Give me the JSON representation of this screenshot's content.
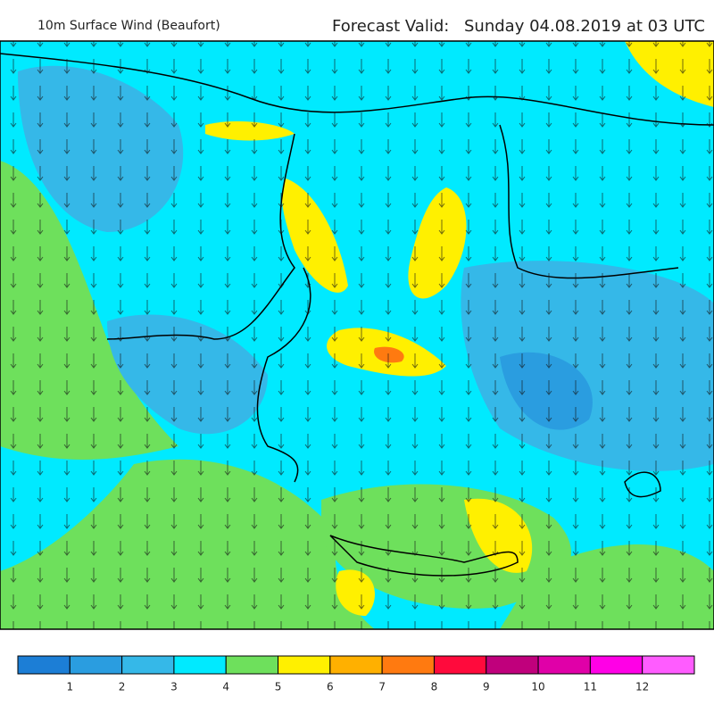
{
  "header": {
    "title": "10m Surface Wind (Beaufort)",
    "forecast_label": "Forecast Valid:",
    "forecast_time": "Sunday 04.08.2019 at 03 UTC"
  },
  "legend": {
    "colors": [
      "#1c7ed6",
      "#2a9de0",
      "#35b8e8",
      "#00eaff",
      "#6ee05c",
      "#fff000",
      "#ffb000",
      "#ff7a10",
      "#ff0a3c",
      "#c0007c",
      "#e000a8",
      "#ff00e6",
      "#ff5cff"
    ],
    "labels": [
      1,
      2,
      3,
      4,
      5,
      6,
      7,
      8,
      9,
      10,
      11,
      12
    ]
  }
}
